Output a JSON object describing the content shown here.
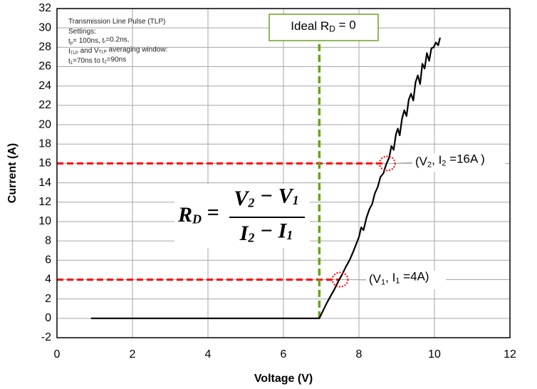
{
  "chart_data": {
    "type": "line",
    "x_label": "Voltage (V)",
    "y_label": "Current (A)",
    "xlim": [
      0,
      12
    ],
    "xticks": [
      0,
      2,
      4,
      6,
      8,
      10,
      12
    ],
    "ylim": [
      -2,
      32
    ],
    "yticks": [
      -2,
      0,
      2,
      4,
      6,
      8,
      10,
      12,
      14,
      16,
      18,
      20,
      22,
      24,
      26,
      28,
      30,
      32
    ],
    "grid": true,
    "series": [
      {
        "color": "#000000",
        "x": [
          0.9,
          6.95,
          7.05,
          7.15,
          7.25,
          7.35,
          7.45,
          7.55,
          7.65,
          7.75,
          7.85,
          7.92,
          8.0,
          8.06,
          8.12,
          8.2,
          8.28,
          8.35,
          8.42,
          8.5,
          8.57,
          8.65,
          8.72,
          8.8,
          8.86,
          8.92,
          8.98,
          9.03,
          9.08,
          9.14,
          9.2,
          9.26,
          9.32,
          9.38,
          9.44,
          9.5,
          9.56,
          9.62,
          9.68,
          9.74,
          9.8,
          9.86,
          9.92,
          9.98,
          10.04,
          10.1,
          10.15
        ],
        "values": [
          0,
          0,
          0.8,
          1.6,
          2.3,
          3.0,
          3.8,
          4.5,
          5.3,
          6.0,
          6.9,
          7.6,
          8.4,
          9.4,
          9.1,
          10.4,
          11.3,
          11.8,
          12.9,
          13.6,
          14.6,
          15.0,
          15.9,
          16.6,
          17.8,
          17.4,
          19.0,
          19.6,
          18.9,
          20.6,
          21.5,
          20.9,
          22.6,
          23.2,
          22.5,
          24.4,
          25.1,
          24.2,
          26.3,
          25.8,
          27.4,
          26.6,
          27.9,
          28.0,
          28.5,
          28.2,
          29.0
        ]
      }
    ],
    "hlines": [
      {
        "y": 16,
        "xlim": [
          0,
          8.75
        ],
        "color": "#ff0000"
      },
      {
        "y": 4,
        "xlim": [
          0,
          7.5
        ],
        "color": "#ff0000"
      }
    ],
    "vlines": [
      {
        "x": 6.95,
        "ylim": [
          0,
          28.7
        ],
        "color": "#6aa121"
      }
    ],
    "markers": [
      {
        "x": 8.75,
        "y": 16,
        "color": "#ff0000"
      },
      {
        "x": 7.5,
        "y": 4,
        "color": "#ff0000"
      }
    ],
    "ideal_label": [
      "Ideal R",
      "D",
      " = 0"
    ],
    "point_labels": [
      [
        "(V",
        "2",
        ",  I",
        "2",
        " =16A )"
      ],
      [
        "(V",
        "1",
        ",  I",
        "1",
        " =4A)"
      ]
    ],
    "formula": {
      "lhs": [
        "R",
        "D",
        " ="
      ],
      "numerator": [
        "V",
        "2",
        " − V",
        "1"
      ],
      "denominator": [
        "I",
        "2",
        " − I",
        "1"
      ]
    },
    "settings": [
      [
        "Transmission Line Pulse (TLP)"
      ],
      [
        "Settings:"
      ],
      [
        "t",
        "p",
        "= 100ns, t",
        "r",
        "=0.2ns,"
      ],
      [
        "I",
        "TLP",
        " and V",
        "TLP",
        " averaging window:"
      ],
      [
        "t",
        "1",
        "=70ns to t",
        "2",
        "=90ns"
      ]
    ]
  }
}
